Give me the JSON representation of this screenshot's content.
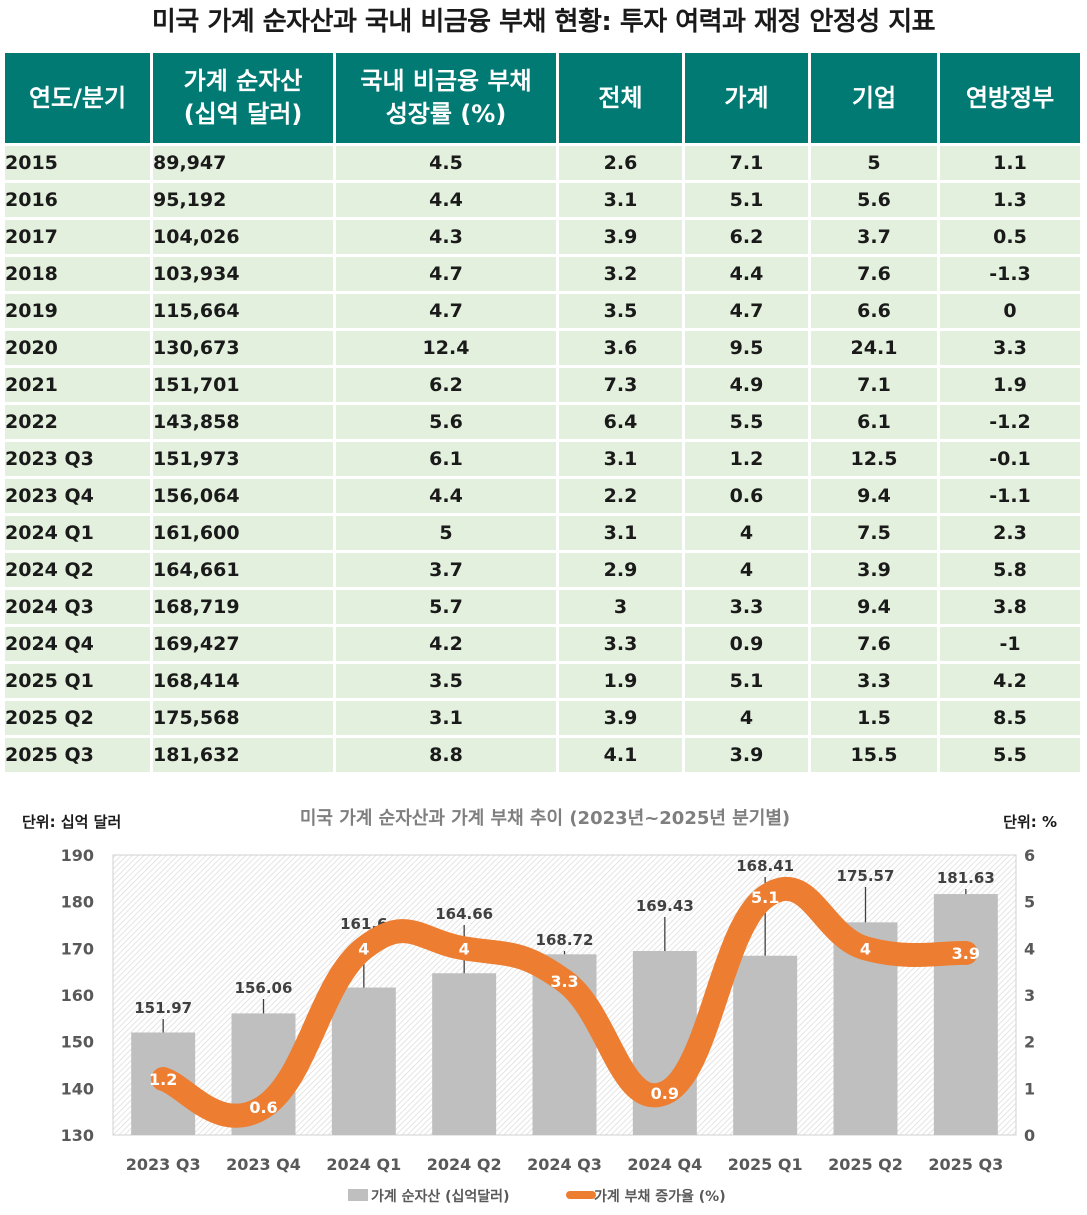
{
  "title": "미국 가계 순자산과 국내 비금융 부채 현황: 투자 여력과 재정 안정성 지표",
  "table": {
    "headers": [
      "연도/분기",
      "가계 순자산\n(십억 달러)",
      "국내 비금융 부채\n성장률 (%)",
      "전체",
      "가계",
      "기업",
      "연방정부"
    ],
    "rows": [
      [
        "2015",
        "89,947",
        "4.5",
        "2.6",
        "7.1",
        "5",
        "1.1"
      ],
      [
        "2016",
        "95,192",
        "4.4",
        "3.1",
        "5.1",
        "5.6",
        "1.3"
      ],
      [
        "2017",
        "104,026",
        "4.3",
        "3.9",
        "6.2",
        "3.7",
        "0.5"
      ],
      [
        "2018",
        "103,934",
        "4.7",
        "3.2",
        "4.4",
        "7.6",
        "-1.3"
      ],
      [
        "2019",
        "115,664",
        "4.7",
        "3.5",
        "4.7",
        "6.6",
        "0"
      ],
      [
        "2020",
        "130,673",
        "12.4",
        "3.6",
        "9.5",
        "24.1",
        "3.3"
      ],
      [
        "2021",
        "151,701",
        "6.2",
        "7.3",
        "4.9",
        "7.1",
        "1.9"
      ],
      [
        "2022",
        "143,858",
        "5.6",
        "6.4",
        "5.5",
        "6.1",
        "-1.2"
      ],
      [
        "2023 Q3",
        "151,973",
        "6.1",
        "3.1",
        "1.2",
        "12.5",
        "-0.1"
      ],
      [
        "2023 Q4",
        "156,064",
        "4.4",
        "2.2",
        "0.6",
        "9.4",
        "-1.1"
      ],
      [
        "2024 Q1",
        "161,600",
        "5",
        "3.1",
        "4",
        "7.5",
        "2.3"
      ],
      [
        "2024 Q2",
        "164,661",
        "3.7",
        "2.9",
        "4",
        "3.9",
        "5.8"
      ],
      [
        "2024 Q3",
        "168,719",
        "5.7",
        "3",
        "3.3",
        "9.4",
        "3.8"
      ],
      [
        "2024 Q4",
        "169,427",
        "4.2",
        "3.3",
        "0.9",
        "7.6",
        "-1"
      ],
      [
        "2025 Q1",
        "168,414",
        "3.5",
        "1.9",
        "5.1",
        "3.3",
        "4.2"
      ],
      [
        "2025 Q2",
        "175,568",
        "3.1",
        "3.9",
        "4",
        "1.5",
        "8.5"
      ],
      [
        "2025 Q3",
        "181,632",
        "8.8",
        "4.1",
        "3.9",
        "15.5",
        "5.5"
      ]
    ]
  },
  "chart_data": {
    "type": "bar",
    "title": "미국 가계 순자산과 가계 부채 추이 (2023년~2025년 분기별)",
    "unit_left": "단위: 십억 달러",
    "unit_right": "단위: %",
    "categories": [
      "2023 Q3",
      "2023 Q4",
      "2024 Q1",
      "2024 Q2",
      "2024 Q3",
      "2024 Q4",
      "2025 Q1",
      "2025 Q2",
      "2025 Q3"
    ],
    "series": [
      {
        "name": "가계 순자산 (십억달러)",
        "type": "bar",
        "axis": "left",
        "values": [
          151.97,
          156.06,
          161.6,
          164.66,
          168.72,
          169.43,
          168.41,
          175.57,
          181.63
        ],
        "labels": [
          "151.97",
          "156.06",
          "161.6",
          "164.66",
          "168.72",
          "169.43",
          "168.41",
          "175.57",
          "181.63"
        ],
        "color": "#bfbfbf"
      },
      {
        "name": "가계 부채 증가율 (%)",
        "type": "line",
        "axis": "right",
        "values": [
          1.2,
          0.6,
          4,
          4,
          3.3,
          0.9,
          5.1,
          4,
          3.9
        ],
        "labels": [
          "1.2",
          "0.6",
          "4",
          "4",
          "3.3",
          "0.9",
          "5.1",
          "4",
          "3.9"
        ],
        "color": "#ed7d31"
      }
    ],
    "y_left": {
      "min": 130,
      "max": 190,
      "ticks": [
        "130",
        "140",
        "150",
        "160",
        "170",
        "180",
        "190"
      ]
    },
    "y_right": {
      "min": 0,
      "max": 6,
      "ticks": [
        "0",
        "1",
        "2",
        "3",
        "4",
        "5",
        "6"
      ]
    },
    "legend_position": "bottom"
  }
}
